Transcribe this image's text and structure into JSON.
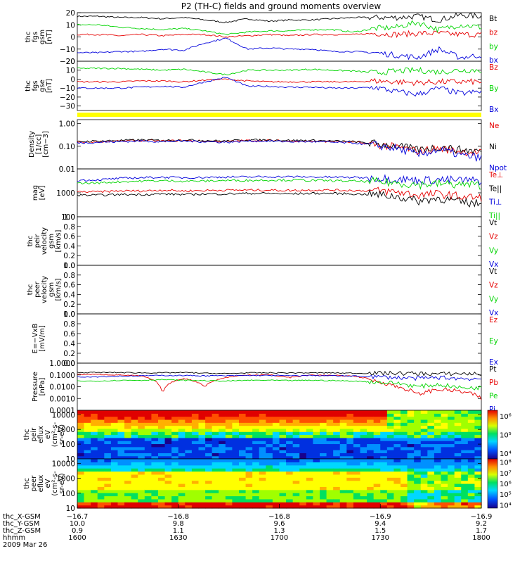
{
  "title": "P2 (TH-C) fields and ground moments overview",
  "date": "2009 Mar 26",
  "colors": {
    "black": "#000000",
    "red": "#e60000",
    "green": "#00d400",
    "blue": "#0000dc",
    "yellow": "#ffff00",
    "axis": "#000000"
  },
  "chart_data": [
    {
      "type": "line",
      "id": "fgs_gsm",
      "ylabel": [
        "thc",
        "fgs",
        "gsm",
        "[nT]"
      ],
      "ylim": [
        -20,
        20
      ],
      "yticks": [
        "20",
        "10",
        "0",
        "−10",
        "−20"
      ],
      "yticks_values": [
        20,
        10,
        0,
        -10,
        -20
      ],
      "series": [
        {
          "name": "Bt",
          "color": "black",
          "values": [
            17,
            17,
            16,
            16,
            15,
            16,
            14,
            12,
            15,
            13,
            14,
            14,
            15,
            16,
            16,
            16,
            17,
            14,
            18,
            17
          ]
        },
        {
          "name": "bz",
          "color": "red",
          "values": [
            2,
            2,
            1,
            2,
            1,
            2,
            2,
            0,
            1,
            2,
            1,
            2,
            2,
            2,
            3,
            2,
            3,
            3,
            2,
            2
          ]
        },
        {
          "name": "by",
          "color": "green",
          "values": [
            10,
            10,
            8,
            7,
            6,
            7,
            5,
            2,
            4,
            5,
            5,
            6,
            6,
            4,
            7,
            8,
            12,
            6,
            10,
            8
          ]
        },
        {
          "name": "bx",
          "color": "blue",
          "values": [
            -13,
            -13,
            -12,
            -12,
            -10,
            -11,
            -5,
            -1,
            -10,
            -9,
            -10,
            -10,
            -12,
            -12,
            -13,
            -15,
            -17,
            -10,
            -17,
            -15
          ]
        }
      ]
    },
    {
      "type": "line",
      "id": "fgs_gse",
      "ylabel": [
        "thc",
        "fgs",
        "gse",
        "[nT]"
      ],
      "ylim": [
        -35,
        20
      ],
      "yticks": [
        "20",
        "10",
        "0",
        "−10",
        "−20",
        "−30"
      ],
      "yticks_values": [
        20,
        10,
        0,
        -10,
        -20,
        -30
      ],
      "series": [
        {
          "name": "Bz",
          "color": "red",
          "values": [
            -3,
            -3,
            -3,
            -2,
            -2,
            -3,
            -1,
            0,
            -2,
            -3,
            -3,
            -3,
            -3,
            -3,
            -2,
            -3,
            -4,
            -3,
            -3,
            -3
          ]
        },
        {
          "name": "By",
          "color": "green",
          "values": [
            12,
            12,
            12,
            11,
            10,
            11,
            8,
            5,
            10,
            10,
            10,
            11,
            10,
            9,
            7,
            9,
            10,
            8,
            10,
            10
          ]
        },
        {
          "name": "Bx",
          "color": "blue",
          "values": [
            -10,
            -10,
            -10,
            -9,
            -8,
            -9,
            -3,
            2,
            -8,
            -8,
            -9,
            -9,
            -10,
            -10,
            -9,
            -14,
            -17,
            -10,
            -16,
            -14
          ]
        }
      ]
    },
    {
      "type": "line",
      "id": "density",
      "ylabel": [
        "Density",
        "[1/cc]",
        "[cm−3]"
      ],
      "scale": "log",
      "ylim": [
        0.01,
        1.5
      ],
      "yticks": [
        "1.00",
        "0.10",
        "0.01"
      ],
      "yticks_values": [
        1,
        0.1,
        0.01
      ],
      "series": [
        {
          "name": "Ne",
          "color": "red",
          "values": [
            0.15,
            0.16,
            0.17,
            0.18,
            0.17,
            0.18,
            0.17,
            0.16,
            0.18,
            0.18,
            0.17,
            0.17,
            0.16,
            0.15,
            0.12,
            0.09,
            0.06,
            0.08,
            0.06,
            0.05
          ]
        },
        {
          "name": "Ni",
          "color": "black",
          "values": [
            0.16,
            0.17,
            0.18,
            0.19,
            0.18,
            0.19,
            0.18,
            0.17,
            0.19,
            0.19,
            0.18,
            0.18,
            0.17,
            0.16,
            0.13,
            0.1,
            0.07,
            0.09,
            0.07,
            0.06
          ]
        },
        {
          "name": "Npot",
          "color": "blue",
          "values": [
            0.14,
            0.15,
            0.16,
            0.17,
            0.16,
            0.17,
            0.16,
            0.15,
            0.17,
            0.17,
            0.16,
            0.16,
            0.15,
            0.14,
            0.11,
            0.08,
            0.04,
            0.07,
            0.04,
            0.03
          ]
        }
      ]
    },
    {
      "type": "line",
      "id": "temperature",
      "ylabel": [
        "mag",
        "[eV]"
      ],
      "scale": "log",
      "ylim": [
        100,
        10000
      ],
      "yticks": [
        "1000",
        "100"
      ],
      "yticks_values": [
        1000,
        100
      ],
      "series": [
        {
          "name": "Te⊥",
          "color": "red",
          "values": [
            1100,
            1100,
            1200,
            1200,
            1300,
            1200,
            1250,
            1300,
            1300,
            1300,
            1250,
            1300,
            1300,
            1250,
            1200,
            1100,
            800,
            900,
            700,
            600
          ]
        },
        {
          "name": "Te||",
          "color": "black",
          "values": [
            800,
            800,
            850,
            850,
            900,
            850,
            900,
            900,
            950,
            950,
            900,
            950,
            950,
            900,
            850,
            700,
            450,
            600,
            400,
            350
          ]
        },
        {
          "name": "Ti⊥",
          "color": "blue",
          "values": [
            3300,
            3500,
            4000,
            4300,
            4500,
            4300,
            4400,
            4600,
            4600,
            4700,
            4700,
            4600,
            4500,
            4400,
            4200,
            3800,
            3300,
            3500,
            3300,
            3200
          ]
        },
        {
          "name": "Ti||",
          "color": "green",
          "values": [
            2500,
            2600,
            2900,
            3100,
            3200,
            3100,
            3100,
            3300,
            3300,
            3400,
            3400,
            3300,
            3200,
            3100,
            2900,
            2600,
            2200,
            2400,
            2200,
            2100
          ]
        }
      ]
    },
    {
      "type": "line",
      "id": "peir_velocity",
      "ylabel": [
        "thc",
        "peir",
        "velocity",
        "gsm",
        "[km/s]"
      ],
      "ylim": [
        0,
        1
      ],
      "yticks": [
        "1.0",
        "0.8",
        "0.6",
        "0.4",
        "0.2",
        "0.0"
      ],
      "yticks_values": [
        1,
        0.8,
        0.6,
        0.4,
        0.2,
        0
      ],
      "series": [
        {
          "name": "Vt",
          "color": "black",
          "values": []
        },
        {
          "name": "Vz",
          "color": "red",
          "values": []
        },
        {
          "name": "Vy",
          "color": "green",
          "values": []
        },
        {
          "name": "Vx",
          "color": "blue",
          "values": []
        }
      ]
    },
    {
      "type": "line",
      "id": "peer_velocity",
      "ylabel": [
        "thc",
        "peer",
        "velocity",
        "gsm",
        "[km/s]"
      ],
      "ylim": [
        0,
        1
      ],
      "yticks": [
        "1.0",
        "0.8",
        "0.6",
        "0.4",
        "0.2",
        "0.0"
      ],
      "yticks_values": [
        1,
        0.8,
        0.6,
        0.4,
        0.2,
        0
      ],
      "series": [
        {
          "name": "Vt",
          "color": "black",
          "values": []
        },
        {
          "name": "Vz",
          "color": "red",
          "values": []
        },
        {
          "name": "Vy",
          "color": "green",
          "values": []
        },
        {
          "name": "Vx",
          "color": "blue",
          "values": []
        }
      ]
    },
    {
      "type": "line",
      "id": "e_field",
      "ylabel": [
        "E=−VxB",
        "[mV/m]"
      ],
      "ylim": [
        0,
        1
      ],
      "yticks": [
        "1.0",
        "0.8",
        "0.6",
        "0.4",
        "0.2",
        "0.0"
      ],
      "yticks_values": [
        1,
        0.8,
        0.6,
        0.4,
        0.2,
        0
      ],
      "series": [
        {
          "name": "Ez",
          "color": "red",
          "values": []
        },
        {
          "name": "Ey",
          "color": "green",
          "values": []
        },
        {
          "name": "Ex",
          "color": "blue",
          "values": []
        }
      ]
    },
    {
      "type": "line",
      "id": "pressure",
      "ylabel": [
        "Pressure",
        "[nPa]"
      ],
      "scale": "log",
      "ylim": [
        0.0001,
        1
      ],
      "yticks": [
        "1.0000",
        "0.1000",
        "0.0100",
        "0.0010",
        "0.0001"
      ],
      "yticks_values": [
        1,
        0.1,
        0.01,
        0.001,
        0.0001
      ],
      "series": [
        {
          "name": "Pt",
          "color": "black",
          "values": [
            0.16,
            0.16,
            0.16,
            0.15,
            0.15,
            0.16,
            0.14,
            0.13,
            0.15,
            0.15,
            0.15,
            0.15,
            0.15,
            0.14,
            0.14,
            0.14,
            0.13,
            0.12,
            0.13,
            0.12
          ]
        },
        {
          "name": "Pb",
          "color": "red",
          "values": [
            0.11,
            0.11,
            0.1,
            0.08,
            0.002,
            0.05,
            0.01,
            0.06,
            0.1,
            0.1,
            0.06,
            0.1,
            0.09,
            0.08,
            0.03,
            0.01,
            0.002,
            0.006,
            0.004,
            0.001
          ]
        },
        {
          "name": "Pe",
          "color": "green",
          "values": [
            0.03,
            0.03,
            0.035,
            0.035,
            0.04,
            0.035,
            0.033,
            0.03,
            0.035,
            0.035,
            0.033,
            0.035,
            0.033,
            0.03,
            0.025,
            0.02,
            0.01,
            0.015,
            0.008,
            0.008
          ]
        },
        {
          "name": "Pi",
          "color": "blue",
          "values": [
            0.07,
            0.07,
            0.08,
            0.085,
            0.09,
            0.09,
            0.085,
            0.085,
            0.09,
            0.09,
            0.085,
            0.09,
            0.085,
            0.08,
            0.07,
            0.06,
            0.05,
            0.06,
            0.05,
            0.045
          ]
        }
      ]
    },
    {
      "type": "heatmap",
      "id": "peir_eflux",
      "ylabel": [
        "thc",
        "peir",
        "eflux",
        "eV",
        "(cm²-s-",
        "sr-eV)"
      ],
      "scale": "log",
      "ylim": [
        10,
        20000
      ],
      "yticks": [
        "10000",
        "1000",
        "100",
        "10"
      ],
      "yticks_values": [
        10000,
        1000,
        100,
        10
      ],
      "colorbar_ticks": [
        "10⁶",
        "10⁵",
        "10⁴"
      ],
      "colorbar_values": [
        1000000,
        100000,
        10000
      ],
      "colorbar_range": [
        5000,
        2000000
      ]
    },
    {
      "type": "heatmap",
      "id": "peer_eflux",
      "ylabel": [
        "thc",
        "peer",
        "eflux",
        "eV",
        "(cm²-s-",
        "sr-eV)"
      ],
      "scale": "log",
      "ylim": [
        10,
        20000
      ],
      "yticks": [
        "10000",
        "1000",
        "100",
        "10"
      ],
      "yticks_values": [
        10000,
        1000,
        100,
        10
      ],
      "colorbar_ticks": [
        "10⁸",
        "10⁷",
        "10⁶",
        "10⁵",
        "10⁴"
      ],
      "colorbar_values": [
        100000000,
        10000000,
        1000000,
        100000,
        10000
      ],
      "colorbar_range": [
        5000,
        200000000
      ]
    }
  ],
  "x_axis": {
    "row_labels": [
      "thc_X-GSM",
      "thc_Y-GSM",
      "thc_Z-GSM",
      "hhmm"
    ],
    "columns": [
      [
        "−16.7",
        "10.0",
        "0.9",
        "1600"
      ],
      [
        "−16.8",
        "9.8",
        "1.1",
        "1630"
      ],
      [
        "−16.8",
        "9.6",
        "1.3",
        "1700"
      ],
      [
        "−16.9",
        "9.4",
        "1.5",
        "1730"
      ],
      [
        "−16.9",
        "9.2",
        "1.7",
        "1800"
      ]
    ]
  }
}
